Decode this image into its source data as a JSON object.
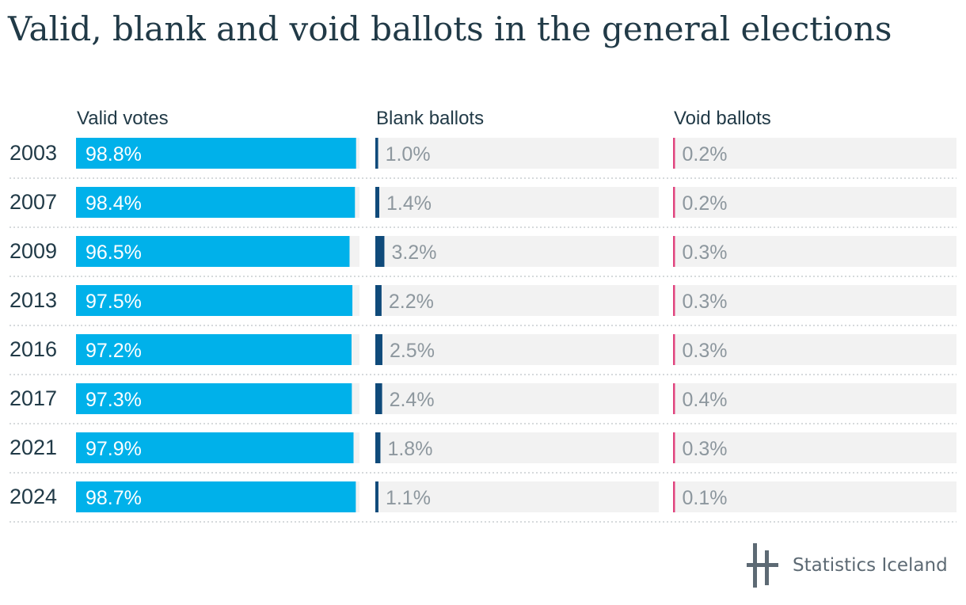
{
  "title": "Valid, blank and void ballots in the general elections",
  "logo": {
    "text": "Statistics Iceland"
  },
  "colors": {
    "valid": "#00b1ea",
    "blank": "#0f4a7a",
    "void": "#e0447e",
    "track": "#f2f2f2",
    "value_text_on_bar": "#ffffff",
    "value_text": "#8d979e",
    "text": "#213a47",
    "divider": "#c9cdd1"
  },
  "chart_data": {
    "type": "bar",
    "title": "Valid, blank and void ballots in the general elections",
    "categories": [
      "2003",
      "2007",
      "2009",
      "2013",
      "2016",
      "2017",
      "2021",
      "2024"
    ],
    "series": [
      {
        "name": "Valid votes",
        "values": [
          98.8,
          98.4,
          96.5,
          97.5,
          97.2,
          97.3,
          97.9,
          98.7
        ],
        "labels": [
          "98.8%",
          "98.4%",
          "96.5%",
          "97.5%",
          "97.2%",
          "97.3%",
          "97.9%",
          "98.7%"
        ]
      },
      {
        "name": "Blank ballots",
        "values": [
          1.0,
          1.4,
          3.2,
          2.2,
          2.5,
          2.4,
          1.8,
          1.1
        ],
        "labels": [
          "1.0%",
          "1.4%",
          "3.2%",
          "2.2%",
          "2.5%",
          "2.4%",
          "1.8%",
          "1.1%"
        ]
      },
      {
        "name": "Void ballots",
        "values": [
          0.2,
          0.2,
          0.3,
          0.3,
          0.3,
          0.4,
          0.3,
          0.1
        ],
        "labels": [
          "0.2%",
          "0.2%",
          "0.3%",
          "0.3%",
          "0.3%",
          "0.4%",
          "0.3%",
          "0.1%"
        ]
      }
    ],
    "xlim": [
      0,
      100
    ],
    "grid": false,
    "legend": "column headers"
  }
}
